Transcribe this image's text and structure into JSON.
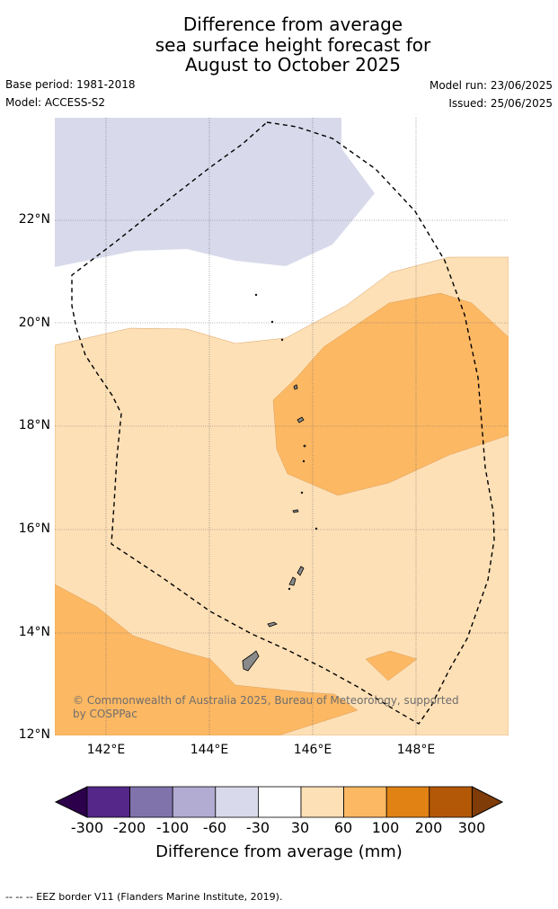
{
  "title": {
    "line1": "Difference from average",
    "line2": "sea surface height forecast for",
    "line3": "August to October 2025"
  },
  "meta": {
    "base_period": "Base period: 1981-2018",
    "model": "Model: ACCESS-S2",
    "model_run": "Model run: 23/06/2025",
    "issued": "Issued: 25/06/2025"
  },
  "map": {
    "lat_labels": [
      "22°N",
      "20°N",
      "18°N",
      "16°N",
      "14°N",
      "12°N"
    ],
    "lon_labels": [
      "142°E",
      "144°E",
      "146°E",
      "148°E"
    ],
    "lat_range": [
      12,
      24
    ],
    "lon_range": [
      141,
      149.8
    ],
    "credit": "© Commonwealth of Australia 2025, Bureau of Meteorology, supported by COSPPac"
  },
  "colorbar": {
    "ticks": [
      "-300",
      "-200",
      "-100",
      "-60",
      "-30",
      "30",
      "60",
      "100",
      "200",
      "300"
    ],
    "colors": [
      "#2d004b",
      "#542788",
      "#8073ac",
      "#b2abd2",
      "#d8daeb",
      "#ffffff",
      "#fee0b6",
      "#fdb863",
      "#e08214",
      "#b35806",
      "#7f3b08"
    ],
    "label": "Difference from average (mm)"
  },
  "footer": "--  --  -- EEZ border V11 (Flanders Marine Institute, 2019)."
}
